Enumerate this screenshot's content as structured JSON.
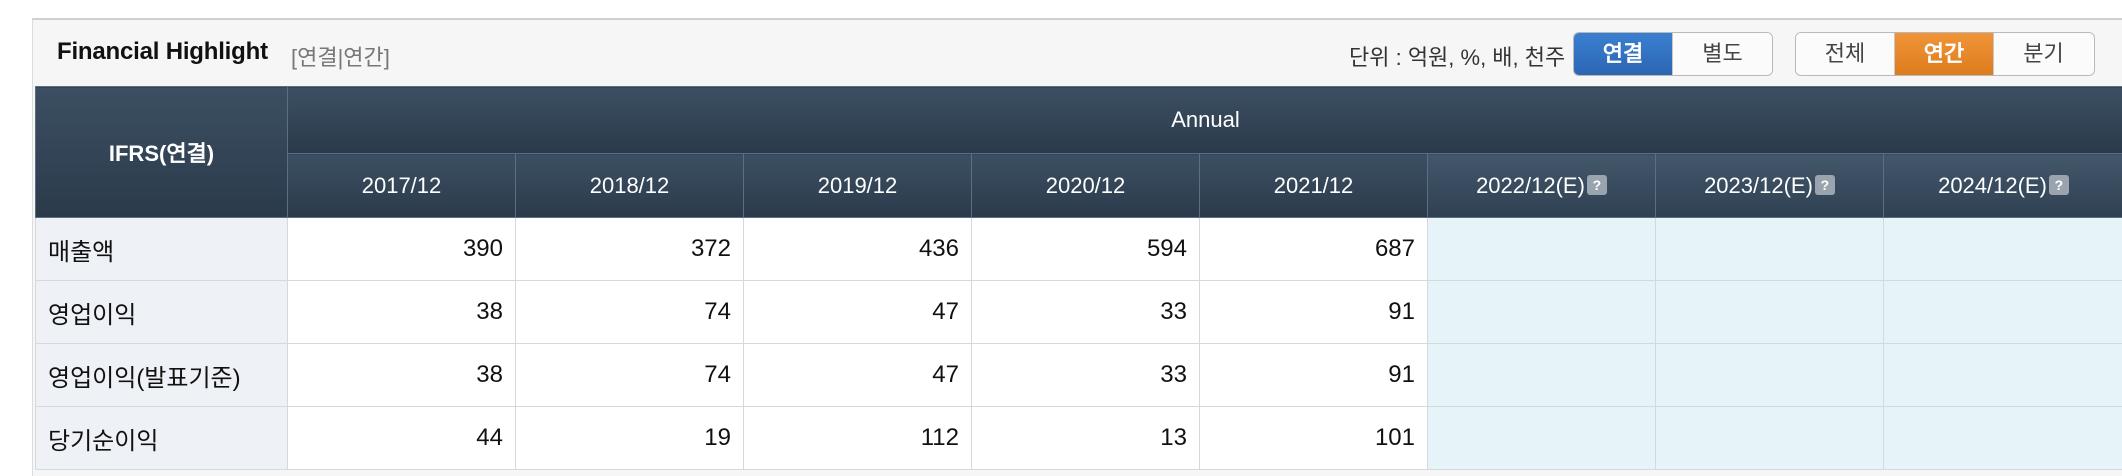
{
  "header": {
    "title": "Financial Highlight",
    "subtitle": "[연결|연간]",
    "unit_text": "단위 : 억원, %, 배, 천주"
  },
  "consolidation_toggle": [
    {
      "label": "연결",
      "active": true
    },
    {
      "label": "별도",
      "active": false
    }
  ],
  "period_toggle": [
    {
      "label": "전체",
      "active": false
    },
    {
      "label": "연간",
      "active": true
    },
    {
      "label": "분기",
      "active": false
    }
  ],
  "table": {
    "corner_label": "IFRS(연결)",
    "group_label": "Annual",
    "columns": [
      "2017/12",
      "2018/12",
      "2019/12",
      "2020/12",
      "2021/12",
      "2022/12(E)",
      "2023/12(E)",
      "2024/12(E)"
    ],
    "help_icon": "question-icon",
    "rows": [
      {
        "label": "매출액",
        "values": [
          "390",
          "372",
          "436",
          "594",
          "687",
          "",
          "",
          ""
        ]
      },
      {
        "label": "영업이익",
        "values": [
          "38",
          "74",
          "47",
          "33",
          "91",
          "",
          "",
          ""
        ]
      },
      {
        "label": "영업이익(발표기준)",
        "values": [
          "38",
          "74",
          "47",
          "33",
          "91",
          "",
          "",
          ""
        ]
      },
      {
        "label": "당기순이익",
        "values": [
          "44",
          "19",
          "112",
          "13",
          "101",
          "",
          "",
          ""
        ]
      }
    ]
  },
  "colors": {
    "header_dark": "#2a3a4b",
    "active_blue": "#2b66b3",
    "active_orange": "#dd7c1e",
    "estimate_cell": "#e6f4fa"
  }
}
